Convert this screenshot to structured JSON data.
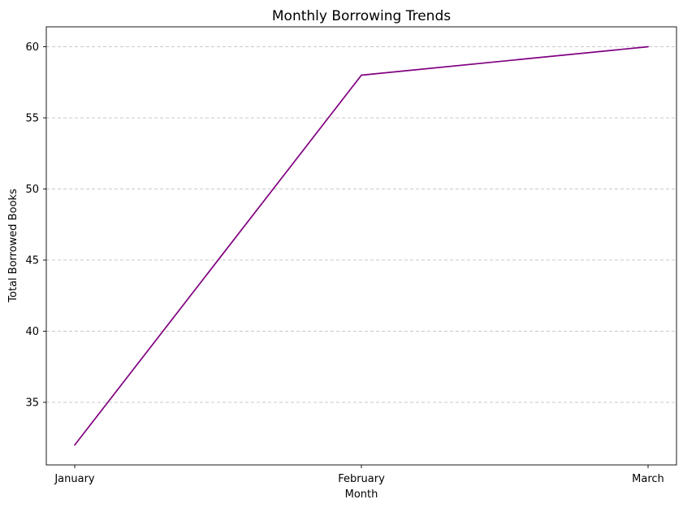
{
  "chart_data": {
    "type": "line",
    "title": "Monthly Borrowing Trends",
    "xlabel": "Month",
    "ylabel": "Total Borrowed Books",
    "categories": [
      "January",
      "February",
      "March"
    ],
    "series": [
      {
        "values": [
          32,
          58,
          60
        ],
        "color": "#800080"
      }
    ],
    "ylim": [
      30.6,
      61.4
    ],
    "yticks": [
      35,
      40,
      45,
      50,
      55,
      60
    ],
    "grid": "y-dashed",
    "legend": "none"
  }
}
